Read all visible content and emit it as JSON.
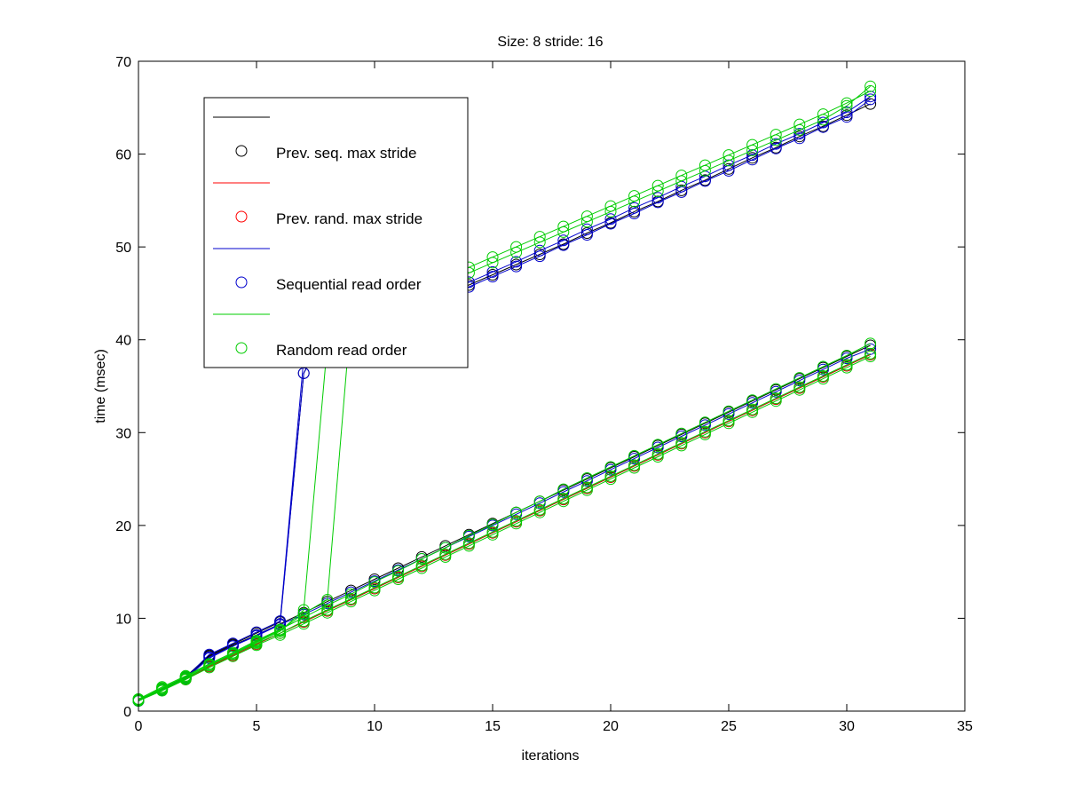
{
  "chart_data": {
    "type": "line",
    "title": "Size: 8 stride: 16",
    "xlabel": "iterations",
    "ylabel": "time (msec)",
    "xlim": [
      0,
      35
    ],
    "ylim": [
      0,
      70
    ],
    "xticks": [
      0,
      5,
      10,
      15,
      20,
      25,
      30,
      35
    ],
    "yticks": [
      0,
      10,
      20,
      30,
      40,
      50,
      60,
      70
    ],
    "grid": false,
    "legend_position": "top-left",
    "legend": [
      {
        "label": "",
        "color": "#000000",
        "kind": "line"
      },
      {
        "label": "Prev. seq. max stride",
        "color": "#000000",
        "kind": "marker"
      },
      {
        "label": "",
        "color": "#ff0000",
        "kind": "line"
      },
      {
        "label": "Prev. rand. max stride",
        "color": "#ff0000",
        "kind": "marker"
      },
      {
        "label": "",
        "color": "#0000cc",
        "kind": "line"
      },
      {
        "label": "Sequential read order",
        "color": "#0000cc",
        "kind": "marker"
      },
      {
        "label": "",
        "color": "#00cc00",
        "kind": "line"
      },
      {
        "label": "Random read order",
        "color": "#00cc00",
        "kind": "marker"
      }
    ],
    "series": [
      {
        "name": "Prev. seq. max stride",
        "color": "#000000",
        "x": [
          0,
          1,
          2,
          3,
          4,
          5,
          6,
          7,
          8,
          9,
          10,
          11,
          12,
          13,
          14,
          15,
          16,
          17,
          18,
          19,
          20,
          21,
          22,
          23,
          24,
          25,
          26,
          27,
          28,
          29,
          30,
          31
        ],
        "y": [
          1.2,
          2.4,
          3.6,
          5.9,
          7.1,
          8.2,
          9.4,
          10.6,
          11.8,
          13.0,
          14.2,
          15.4,
          16.6,
          17.8,
          19.0,
          20.2,
          21.4,
          22.6,
          23.8,
          25.0,
          26.2,
          27.4,
          28.6,
          29.8,
          31.0,
          32.2,
          33.4,
          34.6,
          35.8,
          37.0,
          38.2,
          39.4
        ]
      },
      {
        "name": "Prev. seq. max stride",
        "color": "#000000",
        "x": [
          0,
          1,
          2,
          3,
          4,
          5,
          6,
          7,
          8,
          9,
          10,
          11,
          12,
          13,
          14,
          15,
          16,
          17,
          18,
          19,
          20,
          21,
          22,
          23,
          24,
          25,
          26,
          27,
          28,
          29,
          30,
          31
        ],
        "y": [
          1.2,
          2.4,
          3.7,
          6.0,
          7.2,
          8.4,
          9.6,
          36.4,
          41.5,
          42.3,
          43.0,
          43.7,
          44.4,
          45.2,
          45.9,
          47.0,
          48.1,
          49.2,
          50.3,
          51.5,
          52.6,
          53.8,
          54.9,
          56.1,
          57.2,
          58.4,
          59.6,
          60.7,
          61.9,
          63.0,
          64.2,
          65.4
        ]
      },
      {
        "name": "Prev. rand. max stride",
        "color": "#cc0000",
        "x": [
          0,
          1,
          2,
          3,
          4,
          5,
          6,
          7,
          8,
          9,
          10,
          11,
          12,
          13,
          14,
          15,
          16,
          17,
          18,
          19,
          20,
          21,
          22,
          23,
          24,
          25,
          26,
          27,
          28,
          29,
          30,
          31
        ],
        "y": [
          1.2,
          2.3,
          3.4,
          4.8,
          6.0,
          7.2,
          8.4,
          9.6,
          10.8,
          12.0,
          13.2,
          14.4,
          15.6,
          16.8,
          18.0,
          19.2,
          20.4,
          21.6,
          22.8,
          24.0,
          25.2,
          26.4,
          27.6,
          28.8,
          30.0,
          31.2,
          32.4,
          33.6,
          34.8,
          36.0,
          37.2,
          38.4
        ]
      },
      {
        "name": "Sequential read order",
        "color": "#0000cc",
        "x": [
          0,
          1,
          2,
          3,
          4,
          5,
          6,
          7,
          8,
          9,
          10,
          11,
          12,
          13,
          14,
          15,
          16,
          17,
          18,
          19,
          20,
          21,
          22,
          23,
          24,
          25,
          26,
          27,
          28,
          29,
          30,
          31
        ],
        "y": [
          1.1,
          2.3,
          3.5,
          5.7,
          7.0,
          8.1,
          9.3,
          10.4,
          11.6,
          12.8,
          14.0,
          15.2,
          16.4,
          17.6,
          18.8,
          20.0,
          21.2,
          22.4,
          23.6,
          24.8,
          26.0,
          27.2,
          28.4,
          29.6,
          30.8,
          32.0,
          33.2,
          34.4,
          35.6,
          36.8,
          38.0,
          39.0
        ]
      },
      {
        "name": "Sequential read order",
        "color": "#0000cc",
        "x": [
          0,
          1,
          2,
          3,
          4,
          5,
          6,
          7,
          8,
          9,
          10,
          11,
          12,
          13,
          14,
          15,
          16,
          17,
          18,
          19,
          20,
          21,
          22,
          23,
          24,
          25,
          26,
          27,
          28,
          29,
          30,
          31
        ],
        "y": [
          1.1,
          2.3,
          3.5,
          5.8,
          7.0,
          8.2,
          9.4,
          36.4,
          41.0,
          41.9,
          42.7,
          43.5,
          44.3,
          45.0,
          45.7,
          46.8,
          47.9,
          49.0,
          50.2,
          51.3,
          52.5,
          53.6,
          54.8,
          55.9,
          57.1,
          58.2,
          59.4,
          60.6,
          61.7,
          62.9,
          64.0,
          65.9
        ]
      },
      {
        "name": "Sequential read order",
        "color": "#0000cc",
        "x": [
          0,
          1,
          2,
          3,
          4,
          5,
          6,
          7,
          8,
          9,
          10,
          11,
          12,
          13,
          14,
          15,
          16,
          17,
          18,
          19,
          20,
          21,
          22,
          23,
          24,
          25,
          26,
          27,
          28,
          29,
          30,
          31
        ],
        "y": [
          1.2,
          2.4,
          3.6,
          6.1,
          7.3,
          8.5,
          9.7,
          38.0,
          41.8,
          42.6,
          43.3,
          44.0,
          44.8,
          45.5,
          46.2,
          47.3,
          48.4,
          49.6,
          50.7,
          51.9,
          53.0,
          54.2,
          55.3,
          56.5,
          57.6,
          58.8,
          59.9,
          61.1,
          62.2,
          63.4,
          64.5,
          66.2
        ]
      },
      {
        "name": "Random read order",
        "color": "#00cc00",
        "x": [
          0,
          1,
          2,
          3,
          4,
          5,
          6,
          7,
          8,
          9,
          10,
          11,
          12,
          13,
          14,
          15,
          16,
          17,
          18,
          19,
          20,
          21,
          22,
          23,
          24,
          25,
          26,
          27,
          28,
          29,
          30,
          31
        ],
        "y": [
          1.1,
          2.2,
          3.4,
          4.7,
          5.9,
          7.1,
          8.2,
          9.4,
          10.6,
          11.8,
          13.0,
          14.2,
          15.4,
          16.6,
          17.8,
          19.0,
          20.2,
          21.4,
          22.6,
          23.8,
          25.0,
          26.2,
          27.4,
          28.6,
          29.8,
          31.0,
          32.2,
          33.4,
          34.6,
          35.8,
          37.0,
          38.2
        ]
      },
      {
        "name": "Random read order",
        "color": "#00cc00",
        "x": [
          0,
          1,
          2,
          3,
          4,
          5,
          6,
          7,
          8,
          9,
          10,
          11,
          12,
          13,
          14,
          15,
          16,
          17,
          18,
          19,
          20,
          21,
          22,
          23,
          24,
          25,
          26,
          27,
          28,
          29,
          30,
          31
        ],
        "y": [
          1.3,
          2.6,
          3.8,
          5.1,
          6.3,
          7.6,
          8.8,
          10.1,
          11.4,
          12.6,
          13.9,
          15.1,
          16.4,
          17.6,
          18.9,
          20.1,
          21.4,
          22.6,
          23.9,
          25.1,
          26.3,
          27.5,
          28.7,
          29.9,
          31.1,
          32.3,
          33.5,
          34.7,
          35.9,
          37.1,
          38.3,
          39.6
        ]
      },
      {
        "name": "Random read order",
        "color": "#00cc00",
        "x": [
          0,
          1,
          2,
          3,
          4,
          5,
          6,
          7,
          8,
          9,
          10,
          11,
          12,
          13,
          14,
          15,
          16,
          17,
          18,
          19,
          20,
          21,
          22,
          23,
          24,
          25,
          26,
          27,
          28,
          29,
          30,
          31
        ],
        "y": [
          1.2,
          2.4,
          3.6,
          4.9,
          6.1,
          7.4,
          8.6,
          10.9,
          39.5,
          41.8,
          42.9,
          44.0,
          45.1,
          46.1,
          47.2,
          48.3,
          49.4,
          50.5,
          51.6,
          52.7,
          53.8,
          54.9,
          56.0,
          57.1,
          58.2,
          59.3,
          60.4,
          61.5,
          62.6,
          63.7,
          65.2,
          67.3
        ]
      },
      {
        "name": "Random read order",
        "color": "#00cc00",
        "x": [
          0,
          1,
          2,
          3,
          4,
          5,
          6,
          7,
          8,
          9,
          10,
          11,
          12,
          13,
          14,
          15,
          16,
          17,
          18,
          19,
          20,
          21,
          22,
          23,
          24,
          25,
          26,
          27,
          28,
          29,
          30,
          31
        ],
        "y": [
          1.2,
          2.3,
          3.5,
          4.9,
          6.1,
          7.3,
          8.4,
          9.7,
          10.9,
          12.1,
          13.3,
          14.5,
          15.7,
          16.9,
          18.1,
          19.3,
          20.5,
          21.7,
          22.9,
          24.1,
          25.3,
          26.5,
          27.7,
          28.9,
          30.1,
          31.3,
          32.5,
          33.7,
          34.9,
          36.1,
          37.3,
          38.5
        ]
      },
      {
        "name": "Random read order",
        "color": "#00cc00",
        "x": [
          0,
          1,
          2,
          3,
          4,
          5,
          6,
          7,
          8,
          9,
          10,
          11,
          12,
          13,
          14,
          15,
          16,
          17,
          18,
          19,
          20,
          21,
          22,
          23,
          24,
          25,
          26,
          27,
          28,
          29,
          30,
          31
        ],
        "y": [
          1.2,
          2.5,
          3.7,
          5.0,
          6.2,
          7.5,
          8.7,
          10.5,
          12.0,
          42.5,
          43.6,
          44.6,
          45.7,
          46.7,
          47.8,
          48.9,
          50.0,
          51.1,
          52.2,
          53.3,
          54.4,
          55.5,
          56.6,
          57.7,
          58.8,
          59.9,
          61.0,
          62.1,
          63.2,
          64.3,
          65.5,
          66.8
        ]
      }
    ]
  }
}
